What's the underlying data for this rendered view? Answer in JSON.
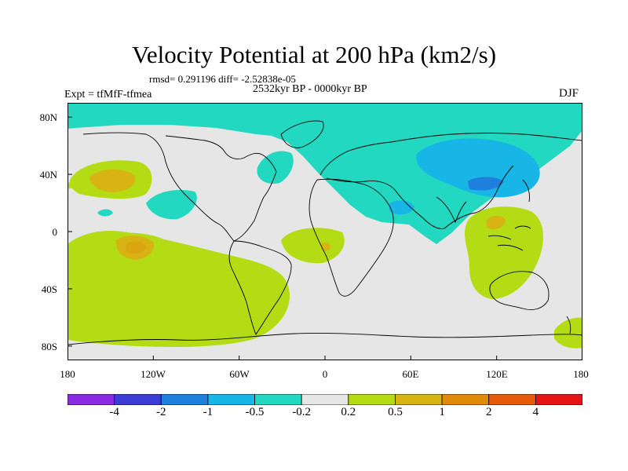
{
  "header": {
    "title": "Velocity Potential at 200 hPa (km2/s)",
    "stats": "rmsd= 0.291196 diff= -2.52838e-05",
    "period": "2532kyr BP - 0000kyr BP",
    "experiment": "Expt = tfMfF-tfmea",
    "season": "DJF"
  },
  "map": {
    "projection": "cylindrical equidistant",
    "lat_range": [
      -90,
      90
    ],
    "lon_range": [
      -180,
      180
    ],
    "lat_labels": [
      "80N",
      "40N",
      "0",
      "40S",
      "80S"
    ],
    "lon_labels": [
      "180",
      "120W",
      "60W",
      "0",
      "60E",
      "120E",
      "180"
    ],
    "background_color": "#e6e6e6",
    "coastline_color": "#000000"
  },
  "colorbar": {
    "colors": [
      "#8a2be2",
      "#3b3bd6",
      "#1e7fdc",
      "#18b6e6",
      "#22d8c0",
      "#e6e6e6",
      "#b4dc14",
      "#d7b414",
      "#e08a0a",
      "#e65a0a",
      "#e61414"
    ],
    "labels": [
      "-4",
      "-2",
      "-1",
      "-0.5",
      "-0.2",
      "0.2",
      "0.5",
      "1",
      "2",
      "4"
    ]
  }
}
